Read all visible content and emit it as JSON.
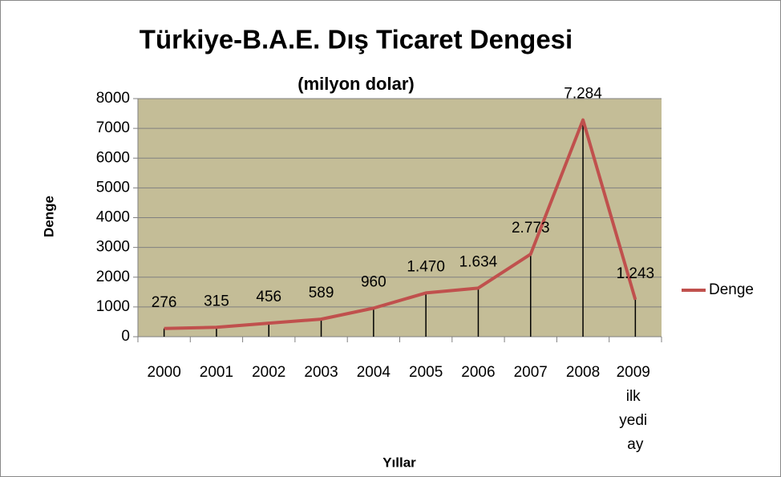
{
  "chart_data": {
    "type": "line",
    "title": "Türkiye-B.A.E. Dış Ticaret Dengesi",
    "subtitle": "(milyon dolar)",
    "x_label": "Yıllar",
    "y_label": "Denge",
    "categories": [
      "2000",
      "2001",
      "2002",
      "2003",
      "2004",
      "2005",
      "2006",
      "2007",
      "2008",
      "2009 ilk yedi ay"
    ],
    "series": [
      {
        "name": "Denge",
        "color": "#c0504d",
        "values": [
          276,
          315,
          456,
          589,
          960,
          1470,
          1634,
          2773,
          7284,
          1243
        ],
        "value_labels": [
          "276",
          "315",
          "456",
          "589",
          "960",
          "1.470",
          "1.634",
          "2.773",
          "7.284",
          "1.243"
        ]
      }
    ],
    "ylim": [
      0,
      8000
    ],
    "yticks": [
      0,
      1000,
      2000,
      3000,
      4000,
      5000,
      6000,
      7000,
      8000
    ],
    "grid": true,
    "drop_lines": true,
    "plot_background": "#c4bd97",
    "legend": "right"
  }
}
